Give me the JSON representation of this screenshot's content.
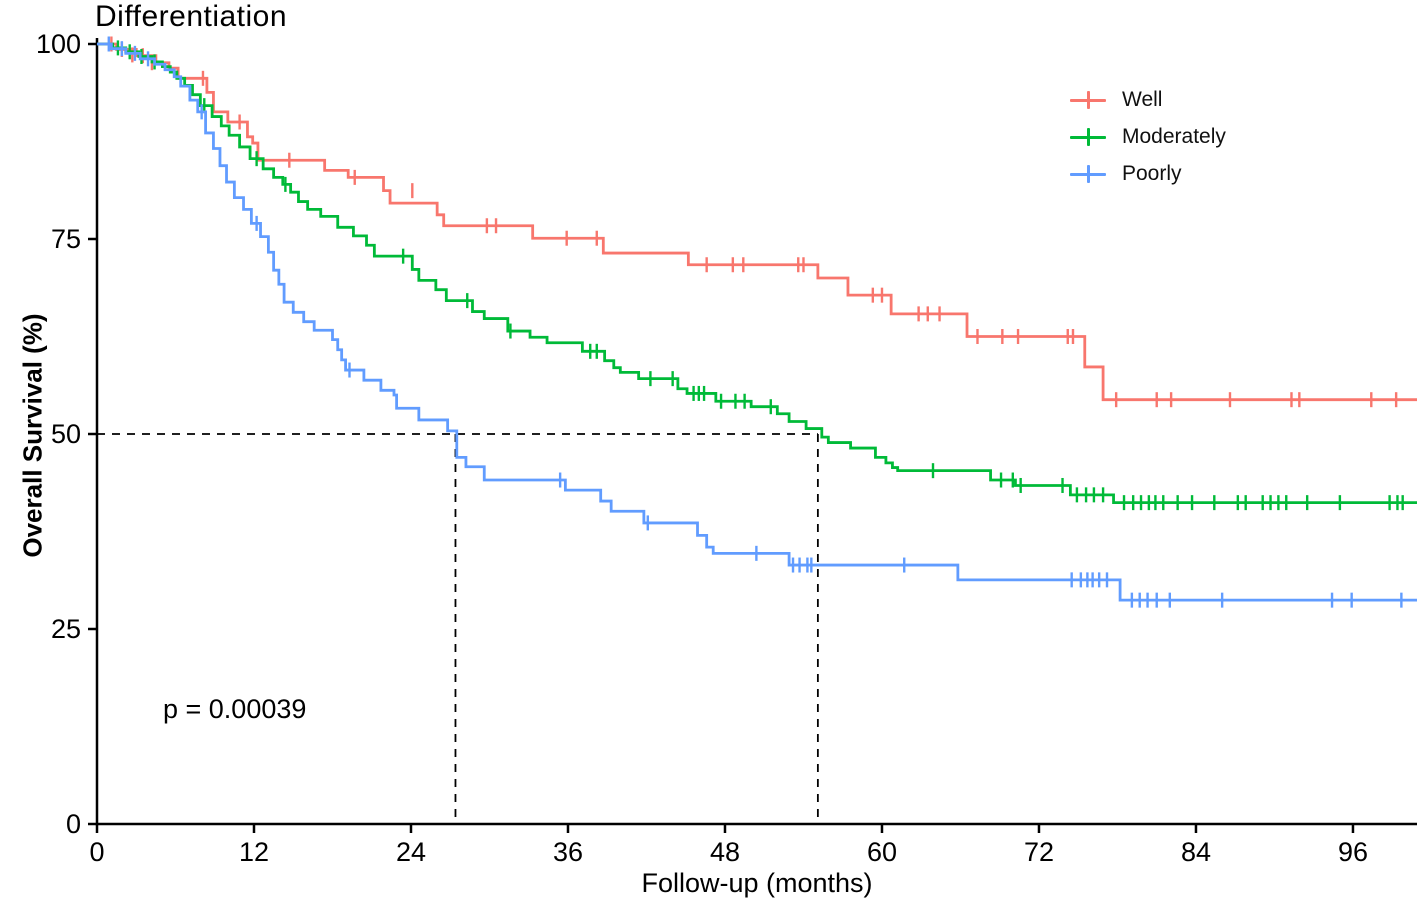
{
  "figure": {
    "title": "Differentiation",
    "x_label": "Follow-up (months)",
    "y_label": "Overall Survival (%)",
    "p_value_text": "p = 0.00039"
  },
  "chart_data": {
    "type": "line",
    "subtype": "kaplan-meier-step",
    "title": "Differentiation",
    "xlabel": "Follow-up (months)",
    "ylabel": "Overall Survival (%)",
    "xlim": [
      0,
      100.9
    ],
    "ylim": [
      0,
      100
    ],
    "x_ticks": [
      0,
      12,
      24,
      36,
      48,
      60,
      72,
      84,
      96
    ],
    "y_ticks": [
      0,
      25,
      50,
      75,
      100
    ],
    "grid": false,
    "legend_position": "top-right",
    "annotations": {
      "p_value": "p = 0.00039"
    },
    "median_guides": {
      "y": 50,
      "x_medians": [
        27.4,
        55.1
      ],
      "style": "dashed",
      "color": "#000000"
    },
    "axis_color": "#000000",
    "series": [
      {
        "name": "Well",
        "color": "#F8766D",
        "steps": [
          [
            0,
            100
          ],
          [
            1.5,
            99.3
          ],
          [
            3,
            98.5
          ],
          [
            4.5,
            97.6
          ],
          [
            5.5,
            96.9
          ],
          [
            6.2,
            95.6
          ],
          [
            8.4,
            93.8
          ],
          [
            8.9,
            91.3
          ],
          [
            10,
            90
          ],
          [
            11.5,
            88.1
          ],
          [
            11.9,
            87.3
          ],
          [
            12.3,
            85.1
          ],
          [
            17.4,
            83.8
          ],
          [
            19.2,
            82.9
          ],
          [
            21.9,
            81.2
          ],
          [
            22.4,
            79.6
          ],
          [
            26,
            78.1
          ],
          [
            26.5,
            76.7
          ],
          [
            33.3,
            75.1
          ],
          [
            38.7,
            73.2
          ],
          [
            45.2,
            71.7
          ],
          [
            55.1,
            70
          ],
          [
            57.4,
            67.8
          ],
          [
            60.7,
            65.4
          ],
          [
            66.5,
            62.5
          ],
          [
            75.5,
            58.6
          ],
          [
            76.9,
            54.4
          ],
          [
            100.9,
            54.4
          ]
        ],
        "censors": [
          [
            1.1,
            100
          ],
          [
            1.9,
            99.3
          ],
          [
            2.7,
            98.6
          ],
          [
            3.5,
            98.5
          ],
          [
            4.2,
            97.6
          ],
          [
            8.1,
            95.6
          ],
          [
            10.9,
            90
          ],
          [
            14.7,
            85.1
          ],
          [
            19.7,
            82.9
          ],
          [
            24.1,
            81.2
          ],
          [
            29.8,
            76.7
          ],
          [
            30.5,
            76.7
          ],
          [
            35.9,
            75.1
          ],
          [
            38.2,
            75.1
          ],
          [
            46.6,
            71.7
          ],
          [
            48.6,
            71.7
          ],
          [
            49.4,
            71.7
          ],
          [
            53.6,
            71.7
          ],
          [
            54,
            71.7
          ],
          [
            59.3,
            67.8
          ],
          [
            60,
            67.8
          ],
          [
            62.8,
            65.4
          ],
          [
            63.5,
            65.4
          ],
          [
            64.4,
            65.4
          ],
          [
            67.3,
            62.5
          ],
          [
            69.2,
            62.5
          ],
          [
            70.4,
            62.5
          ],
          [
            74.2,
            62.5
          ],
          [
            74.6,
            62.5
          ],
          [
            77.9,
            54.4
          ],
          [
            81,
            54.4
          ],
          [
            82.1,
            54.4
          ],
          [
            86.6,
            54.4
          ],
          [
            91.3,
            54.4
          ],
          [
            91.9,
            54.4
          ],
          [
            97.4,
            54.4
          ],
          [
            99.3,
            54.4
          ]
        ]
      },
      {
        "name": "Moderately",
        "color": "#00BA38",
        "steps": [
          [
            0,
            100
          ],
          [
            1.2,
            99.5
          ],
          [
            2.2,
            99
          ],
          [
            3.2,
            98.4
          ],
          [
            4.2,
            97.7
          ],
          [
            5,
            97.1
          ],
          [
            5.6,
            96.4
          ],
          [
            6.1,
            95.6
          ],
          [
            6.7,
            94.7
          ],
          [
            7.3,
            93.5
          ],
          [
            7.9,
            92.1
          ],
          [
            8.8,
            90.7
          ],
          [
            9.5,
            89.5
          ],
          [
            10.1,
            88.3
          ],
          [
            10.9,
            86.8
          ],
          [
            11.7,
            85.3
          ],
          [
            12.7,
            84
          ],
          [
            13.5,
            82.9
          ],
          [
            14.2,
            82
          ],
          [
            14.8,
            81
          ],
          [
            15.4,
            79.8
          ],
          [
            16.1,
            78.8
          ],
          [
            17.1,
            77.9
          ],
          [
            18.4,
            76.5
          ],
          [
            19.6,
            75.4
          ],
          [
            20.6,
            74.2
          ],
          [
            21.2,
            72.8
          ],
          [
            24.1,
            71.1
          ],
          [
            24.6,
            69.7
          ],
          [
            25.9,
            68.5
          ],
          [
            26.7,
            67.1
          ],
          [
            28.7,
            65.7
          ],
          [
            29.6,
            64.8
          ],
          [
            31.4,
            63.2
          ],
          [
            33.1,
            62.4
          ],
          [
            34.4,
            61.7
          ],
          [
            37.1,
            60.6
          ],
          [
            38.8,
            59.4
          ],
          [
            39.5,
            58.5
          ],
          [
            40,
            57.9
          ],
          [
            41.4,
            57.1
          ],
          [
            44.4,
            55.8
          ],
          [
            45.1,
            55.2
          ],
          [
            47.3,
            54.2
          ],
          [
            50,
            53.5
          ],
          [
            52,
            52.6
          ],
          [
            52.9,
            51.6
          ],
          [
            54.2,
            50.7
          ],
          [
            55.4,
            49.6
          ],
          [
            55.9,
            48.9
          ],
          [
            57.6,
            48.2
          ],
          [
            59.5,
            47
          ],
          [
            60.3,
            46.3
          ],
          [
            60.8,
            45.7
          ],
          [
            61.2,
            45.3
          ],
          [
            68.3,
            44.1
          ],
          [
            70.2,
            43.4
          ],
          [
            74.4,
            42.2
          ],
          [
            77.7,
            41.2
          ],
          [
            100.9,
            41.2
          ]
        ],
        "censors": [
          [
            1.6,
            99.5
          ],
          [
            2.5,
            99
          ],
          [
            3.4,
            98.4
          ],
          [
            4.4,
            97.7
          ],
          [
            8.2,
            92.1
          ],
          [
            12.2,
            85.3
          ],
          [
            14.4,
            82
          ],
          [
            23.4,
            72.8
          ],
          [
            28.3,
            67.1
          ],
          [
            31.6,
            63.2
          ],
          [
            37.7,
            60.6
          ],
          [
            38.2,
            60.6
          ],
          [
            42.3,
            57.1
          ],
          [
            44,
            57.1
          ],
          [
            45.6,
            55.2
          ],
          [
            46,
            55.2
          ],
          [
            46.4,
            55.2
          ],
          [
            47.7,
            54.2
          ],
          [
            48.8,
            54.2
          ],
          [
            49.5,
            54.2
          ],
          [
            51.5,
            53.5
          ],
          [
            63.9,
            45.3
          ],
          [
            69.1,
            44.1
          ],
          [
            70,
            44.1
          ],
          [
            70.6,
            43.4
          ],
          [
            73.8,
            43.4
          ],
          [
            74.9,
            42.2
          ],
          [
            75.6,
            42.2
          ],
          [
            76.2,
            42.2
          ],
          [
            76.9,
            42.2
          ],
          [
            78.5,
            41.2
          ],
          [
            79.2,
            41.2
          ],
          [
            79.8,
            41.2
          ],
          [
            80.4,
            41.2
          ],
          [
            80.9,
            41.2
          ],
          [
            81.5,
            41.2
          ],
          [
            82.6,
            41.2
          ],
          [
            83.7,
            41.2
          ],
          [
            85.4,
            41.2
          ],
          [
            87.2,
            41.2
          ],
          [
            87.8,
            41.2
          ],
          [
            89.1,
            41.2
          ],
          [
            89.7,
            41.2
          ],
          [
            90.3,
            41.2
          ],
          [
            90.9,
            41.2
          ],
          [
            92.5,
            41.2
          ],
          [
            95,
            41.2
          ],
          [
            98.8,
            41.2
          ],
          [
            99.4,
            41.2
          ],
          [
            99.8,
            41.2
          ]
        ]
      },
      {
        "name": "Poorly",
        "color": "#619CFF",
        "steps": [
          [
            0,
            100
          ],
          [
            1.1,
            99.4
          ],
          [
            2.2,
            98.8
          ],
          [
            3.3,
            98.1
          ],
          [
            4.4,
            97.4
          ],
          [
            5.2,
            96.7
          ],
          [
            5.9,
            95.8
          ],
          [
            6.4,
            94.6
          ],
          [
            7.1,
            92.8
          ],
          [
            7.7,
            91.3
          ],
          [
            8.3,
            88.6
          ],
          [
            8.9,
            86.6
          ],
          [
            9.4,
            84.4
          ],
          [
            9.9,
            82.3
          ],
          [
            10.5,
            80.3
          ],
          [
            11.2,
            78.8
          ],
          [
            11.8,
            77
          ],
          [
            12.5,
            75.3
          ],
          [
            13.1,
            73.3
          ],
          [
            13.5,
            71
          ],
          [
            13.9,
            69.2
          ],
          [
            14.3,
            66.9
          ],
          [
            15,
            65.6
          ],
          [
            15.8,
            64.4
          ],
          [
            16.6,
            63.3
          ],
          [
            18,
            62.1
          ],
          [
            18.4,
            60.8
          ],
          [
            18.7,
            59.5
          ],
          [
            19,
            58.2
          ],
          [
            20.4,
            56.9
          ],
          [
            21.7,
            55.6
          ],
          [
            22.7,
            55
          ],
          [
            22.9,
            53.3
          ],
          [
            24.6,
            51.8
          ],
          [
            26.8,
            50.4
          ],
          [
            27.5,
            47
          ],
          [
            28.2,
            45.8
          ],
          [
            29.6,
            44.1
          ],
          [
            35.8,
            42.8
          ],
          [
            38.5,
            41.4
          ],
          [
            39.3,
            40.1
          ],
          [
            41.8,
            38.6
          ],
          [
            45.9,
            37
          ],
          [
            46.6,
            35.5
          ],
          [
            47.1,
            34.7
          ],
          [
            52.9,
            33.2
          ],
          [
            65.8,
            31.3
          ],
          [
            78.2,
            28.7
          ],
          [
            100.9,
            28.7
          ]
        ],
        "censors": [
          [
            0.9,
            100
          ],
          [
            1.9,
            99.4
          ],
          [
            2.9,
            98.8
          ],
          [
            3.9,
            98.1
          ],
          [
            8,
            91.3
          ],
          [
            12.2,
            77
          ],
          [
            19.3,
            58.2
          ],
          [
            35.4,
            44.1
          ],
          [
            42.1,
            38.6
          ],
          [
            50.4,
            34.7
          ],
          [
            53.2,
            33.2
          ],
          [
            53.7,
            33.2
          ],
          [
            54.3,
            33.2
          ],
          [
            54.6,
            33.2
          ],
          [
            61.7,
            33.2
          ],
          [
            74.5,
            31.3
          ],
          [
            75.2,
            31.3
          ],
          [
            75.7,
            31.3
          ],
          [
            76.1,
            31.3
          ],
          [
            76.6,
            31.3
          ],
          [
            77.2,
            31.3
          ],
          [
            79.1,
            28.7
          ],
          [
            79.7,
            28.7
          ],
          [
            80.3,
            28.7
          ],
          [
            81,
            28.7
          ],
          [
            82,
            28.7
          ],
          [
            86,
            28.7
          ],
          [
            94.4,
            28.7
          ],
          [
            95.9,
            28.7
          ],
          [
            99.7,
            28.7
          ]
        ]
      }
    ]
  }
}
